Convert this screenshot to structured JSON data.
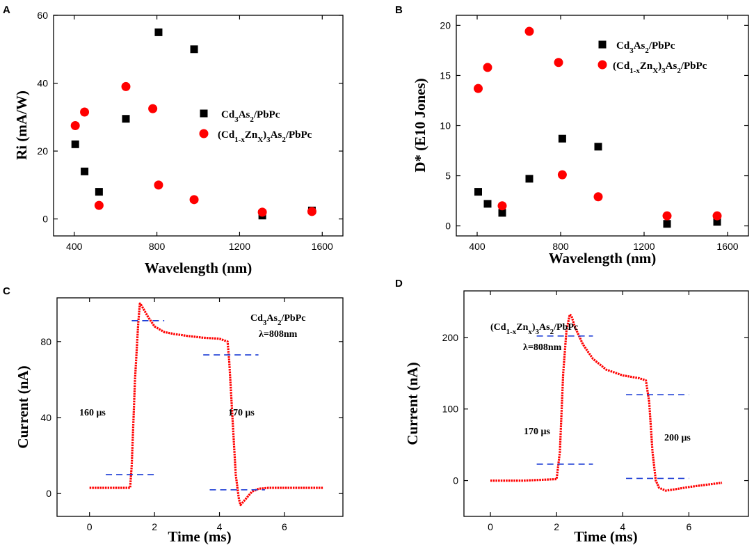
{
  "chart_data": [
    {
      "panel": "A",
      "type": "scatter",
      "xlabel": "Wavelength (nm)",
      "ylabel": "Ri (mA/W)",
      "xlim": [
        300,
        1700
      ],
      "ylim": [
        -5,
        60
      ],
      "xticks": [
        400,
        800,
        1200,
        1600
      ],
      "yticks": [
        0,
        20,
        40,
        60
      ],
      "legend_position": "center-right",
      "series": [
        {
          "name": "Cd3As2/PbPc",
          "legend": {
            "pre": "Cd",
            "s1": "3",
            "mid": "As",
            "s2": "2",
            "post": "/PbPc"
          },
          "marker": "square",
          "color": "#000000",
          "x": [
            405,
            450,
            520,
            650,
            808,
            980,
            1310,
            1550
          ],
          "y": [
            22,
            14,
            8,
            29.5,
            55,
            50,
            1,
            2.5
          ]
        },
        {
          "name": "(Cd1-xZnX)3As2/PbPc",
          "legend": {
            "pre": "(Cd",
            "s1": "1-x",
            "mid": "Zn",
            "s2": "X",
            "mid2": ")",
            "s3": "3",
            "mid3": "As",
            "s4": "2",
            "post": "/PbPc"
          },
          "marker": "circle",
          "color": "#ff0000",
          "x": [
            405,
            450,
            520,
            650,
            780,
            808,
            980,
            1310,
            1550
          ],
          "y": [
            27.5,
            31.5,
            4,
            39,
            32.5,
            10,
            5.7,
            2,
            2.2
          ]
        }
      ]
    },
    {
      "panel": "B",
      "type": "scatter",
      "xlabel": "Wavelength (nm)",
      "ylabel": "D* (E10 Jones)",
      "xlim": [
        300,
        1700
      ],
      "ylim": [
        -1,
        21
      ],
      "xticks": [
        400,
        800,
        1200,
        1600
      ],
      "yticks": [
        0,
        5,
        10,
        15,
        20
      ],
      "legend_position": "top-right",
      "series": [
        {
          "name": "Cd3As2/PbPc",
          "legend": {
            "pre": "Cd",
            "s1": "3",
            "mid": "As",
            "s2": "2",
            "post": "/PbPc"
          },
          "marker": "square",
          "color": "#000000",
          "x": [
            405,
            450,
            520,
            650,
            808,
            980,
            1310,
            1550
          ],
          "y": [
            3.4,
            2.2,
            1.3,
            4.7,
            8.7,
            7.9,
            0.2,
            0.4
          ]
        },
        {
          "name": "(Cd1-xZnX)3As2/PbPc",
          "legend": {
            "pre": "(Cd",
            "s1": "1-x",
            "mid": "Zn",
            "s2": "X",
            "mid2": ")",
            "s3": "3",
            "mid3": "As",
            "s4": "2",
            "post": "/PbPc"
          },
          "marker": "circle",
          "color": "#ff0000",
          "x": [
            405,
            450,
            520,
            650,
            790,
            808,
            980,
            1310,
            1550
          ],
          "y": [
            13.7,
            15.8,
            2.0,
            19.4,
            16.3,
            5.1,
            2.9,
            1.0,
            1.0
          ]
        }
      ]
    },
    {
      "panel": "C",
      "type": "line",
      "xlabel": "Time (ms)",
      "ylabel": "Current (nA)",
      "xlim": [
        -1,
        7.8
      ],
      "ylim": [
        -12,
        103
      ],
      "xticks": [
        0,
        2,
        4,
        6
      ],
      "yticks": [
        0,
        40,
        80
      ],
      "label": {
        "pre": "Cd",
        "s1": "3",
        "mid": "As",
        "s2": "2",
        "post": "/PbPc"
      },
      "wavelength_label": "λ=808nm",
      "rise_label": "160 μs",
      "fall_label": "170 μs",
      "series": [
        {
          "name": "photocurrent",
          "color": "#ff0000",
          "x": [
            0,
            1.25,
            1.3,
            1.4,
            1.5,
            1.55,
            1.6,
            1.8,
            2.0,
            2.3,
            2.6,
            3.0,
            3.5,
            4.0,
            4.25,
            4.3,
            4.4,
            4.5,
            4.6,
            4.65,
            4.8,
            5.0,
            5.2,
            5.5,
            6.0,
            6.5,
            7.2
          ],
          "y": [
            3,
            3,
            15,
            60,
            90,
            100,
            99,
            93,
            88,
            85,
            84,
            83,
            82,
            81.5,
            80,
            70,
            40,
            10,
            -3,
            -6,
            -3,
            1,
            2.5,
            3,
            3,
            3,
            3
          ]
        }
      ],
      "guides": [
        {
          "x": [
            1.3,
            2.3
          ],
          "y": 91
        },
        {
          "x": [
            0.5,
            2.1
          ],
          "y": 10
        },
        {
          "x": [
            3.5,
            5.2
          ],
          "y": 73
        },
        {
          "x": [
            3.7,
            5.4
          ],
          "y": 2
        }
      ]
    },
    {
      "panel": "D",
      "type": "line",
      "xlabel": "Time (ms)",
      "ylabel": "Current (nA)",
      "xlim": [
        -0.8,
        7.8
      ],
      "ylim": [
        -50,
        265
      ],
      "xticks": [
        0,
        2,
        4,
        6
      ],
      "yticks": [
        0,
        100,
        200
      ],
      "label": {
        "pre": "(Cd",
        "s1": "1-x",
        "mid": "Zn",
        "s2": "x",
        "mid2": ")",
        "s3": "3",
        "mid3": "As",
        "s4": "2",
        "post": "/PbPc"
      },
      "wavelength_label": "λ=808nm",
      "rise_label": "170 μs",
      "fall_label": "200 μs",
      "series": [
        {
          "name": "photocurrent",
          "color": "#ff0000",
          "x": [
            0,
            1.0,
            2.0,
            2.1,
            2.2,
            2.3,
            2.4,
            2.45,
            2.55,
            2.8,
            3.1,
            3.5,
            4.0,
            4.5,
            4.7,
            4.8,
            4.9,
            5.0,
            5.1,
            5.3,
            5.6,
            6.0,
            6.5,
            7.0
          ],
          "y": [
            0,
            0,
            2,
            40,
            150,
            210,
            232,
            230,
            215,
            190,
            170,
            155,
            147,
            143,
            140,
            110,
            40,
            0,
            -10,
            -14,
            -12,
            -9,
            -6,
            -3
          ]
        }
      ],
      "guides": [
        {
          "x": [
            1.4,
            3.1
          ],
          "y": 202
        },
        {
          "x": [
            1.4,
            3.1
          ],
          "y": 23
        },
        {
          "x": [
            4.1,
            6.0
          ],
          "y": 120
        },
        {
          "x": [
            4.1,
            6.0
          ],
          "y": 3
        }
      ]
    }
  ],
  "panels": {
    "A": {
      "letter": "A"
    },
    "B": {
      "letter": "B"
    },
    "C": {
      "letter": "C"
    },
    "D": {
      "letter": "D"
    }
  }
}
